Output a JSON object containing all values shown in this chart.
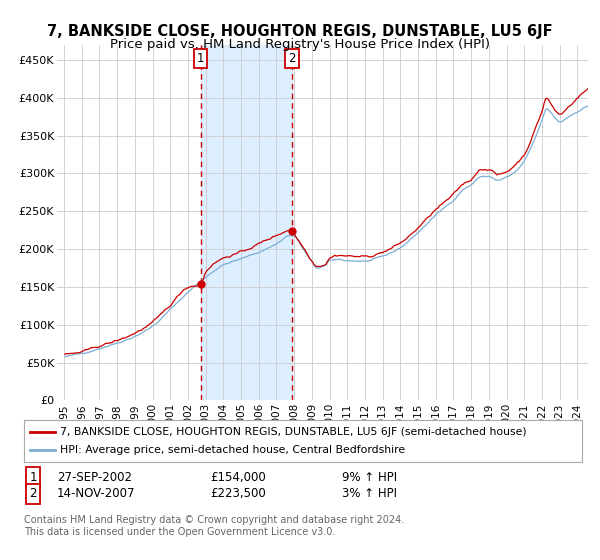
{
  "title": "7, BANKSIDE CLOSE, HOUGHTON REGIS, DUNSTABLE, LU5 6JF",
  "subtitle": "Price paid vs. HM Land Registry's House Price Index (HPI)",
  "ylim": [
    0,
    470000
  ],
  "yticks": [
    0,
    50000,
    100000,
    150000,
    200000,
    250000,
    300000,
    350000,
    400000,
    450000
  ],
  "ytick_labels": [
    "£0",
    "£50K",
    "£100K",
    "£150K",
    "£200K",
    "£250K",
    "£300K",
    "£350K",
    "£400K",
    "£450K"
  ],
  "sale1_date": "27-SEP-2002",
  "sale1_price": 154000,
  "sale1_label": "9% ↑ HPI",
  "sale2_date": "14-NOV-2007",
  "sale2_price": 223500,
  "sale2_label": "3% ↑ HPI",
  "sale1_price_str": "£154,000",
  "sale2_price_str": "£223,500",
  "legend_line1": "7, BANKSIDE CLOSE, HOUGHTON REGIS, DUNSTABLE, LU5 6JF (semi-detached house)",
  "legend_line2": "HPI: Average price, semi-detached house, Central Bedfordshire",
  "footnote1": "Contains HM Land Registry data © Crown copyright and database right 2024.",
  "footnote2": "This data is licensed under the Open Government Licence v3.0.",
  "red_color": "#cc0000",
  "blue_color": "#7bafd4",
  "shade_color": "#ddeeff",
  "bg_color": "#ffffff",
  "grid_color": "#cccccc",
  "title_fontsize": 10.5,
  "subtitle_fontsize": 9.5,
  "xmin": 1994.6,
  "xmax": 2024.6
}
